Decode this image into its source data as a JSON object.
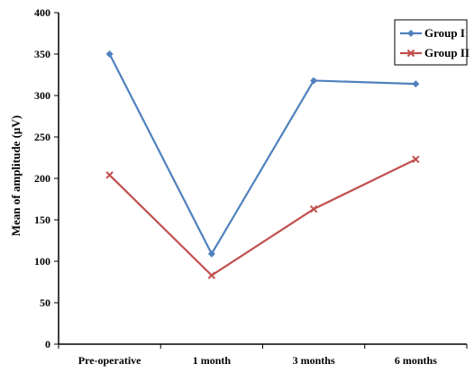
{
  "chart_data": {
    "type": "line",
    "title": "",
    "xlabel": "",
    "ylabel": "Mean of amplitude (µV)",
    "categories": [
      "Pre-operative",
      "1 month",
      "3 months",
      "6 months"
    ],
    "ylim": [
      0,
      400
    ],
    "yticks": [
      0,
      50,
      100,
      150,
      200,
      250,
      300,
      350,
      400
    ],
    "grid": false,
    "legend_position": "top-right",
    "series": [
      {
        "name": "Group I",
        "values": [
          350,
          109,
          318,
          314
        ],
        "color": "#4f81bd",
        "marker": "diamond"
      },
      {
        "name": "Group II",
        "values": [
          204,
          83,
          163,
          223
        ],
        "color": "#c0504d",
        "marker": "x"
      }
    ]
  }
}
